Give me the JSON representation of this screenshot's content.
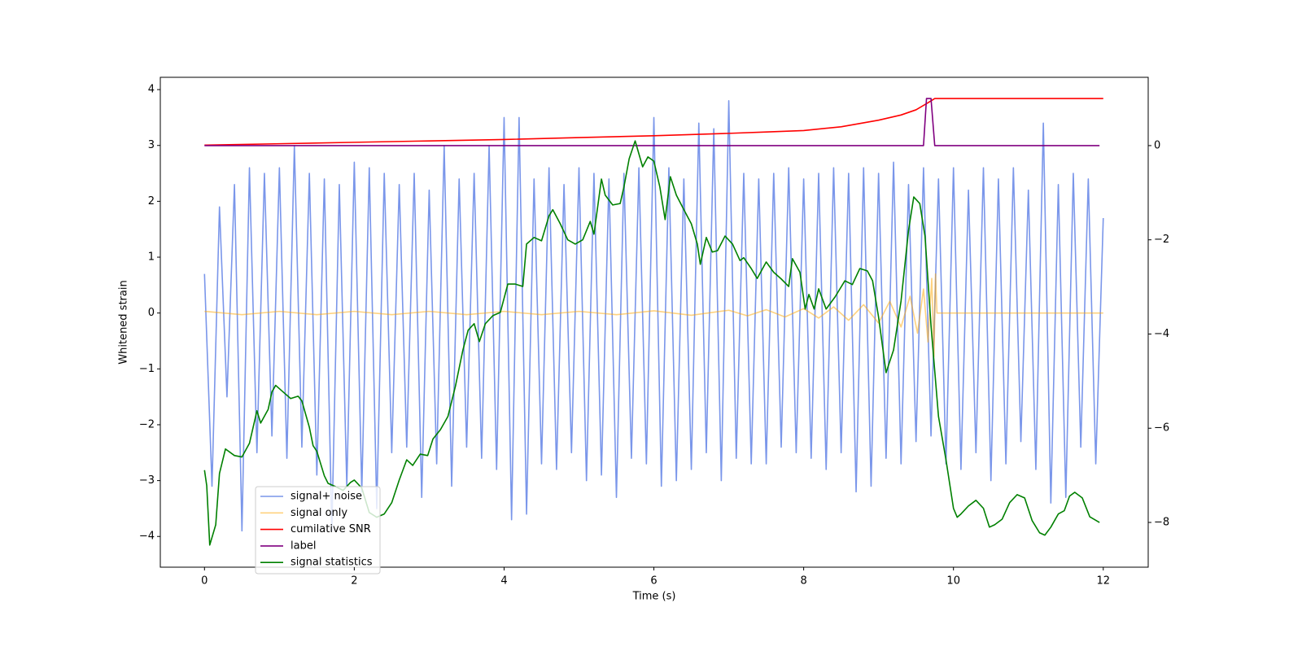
{
  "chart_data": {
    "type": "line",
    "xlabel": "Time (s)",
    "ylabel": "Whitened strain",
    "xlim": [
      -0.59,
      12.6
    ],
    "xticks": [
      0,
      2,
      4,
      6,
      8,
      10,
      12
    ],
    "ylim": [
      -4.55,
      4.22
    ],
    "yticks": [
      {
        "value": -4,
        "label": "−4"
      },
      {
        "value": -3,
        "label": "−3"
      },
      {
        "value": -2,
        "label": "−2"
      },
      {
        "value": -1,
        "label": "−1"
      },
      0,
      1,
      2,
      3,
      4
    ],
    "y2lim": [
      -8.95,
      1.45
    ],
    "y2ticks": [
      {
        "value": -8,
        "label": "−8"
      },
      {
        "value": -6,
        "label": "−6"
      },
      {
        "value": -4,
        "label": "−4"
      },
      {
        "value": -2,
        "label": "−2"
      },
      0
    ],
    "series": [
      {
        "name": "signal+ noise",
        "color": "#4169e1",
        "alpha": 0.7,
        "x": [
          0,
          0.1,
          0.2,
          0.3,
          0.4,
          0.5,
          0.6,
          0.7,
          0.8,
          0.9,
          1,
          1.1,
          1.2,
          1.3,
          1.4,
          1.5,
          1.6,
          1.7,
          1.8,
          1.9,
          2,
          2.1,
          2.2,
          2.3,
          2.4,
          2.5,
          2.6,
          2.7,
          2.8,
          2.9,
          3,
          3.1,
          3.2,
          3.3,
          3.4,
          3.5,
          3.6,
          3.7,
          3.8,
          3.9,
          4,
          4.1,
          4.2,
          4.3,
          4.4,
          4.5,
          4.6,
          4.7,
          4.8,
          4.9,
          5,
          5.1,
          5.2,
          5.3,
          5.4,
          5.5,
          5.6,
          5.7,
          5.8,
          5.9,
          6,
          6.1,
          6.2,
          6.3,
          6.4,
          6.5,
          6.6,
          6.7,
          6.8,
          6.9,
          7,
          7.1,
          7.2,
          7.3,
          7.4,
          7.5,
          7.6,
          7.7,
          7.8,
          7.9,
          8,
          8.1,
          8.2,
          8.3,
          8.4,
          8.5,
          8.6,
          8.7,
          8.8,
          8.9,
          9,
          9.1,
          9.2,
          9.3,
          9.4,
          9.5,
          9.6,
          9.7,
          9.8,
          9.9,
          10,
          10.1,
          10.2,
          10.3,
          10.4,
          10.5,
          10.6,
          10.7,
          10.8,
          10.9,
          11,
          11.1,
          11.2,
          11.3,
          11.4,
          11.5,
          11.6,
          11.7,
          11.8,
          11.9,
          12
        ],
        "values": [
          0.7,
          -3.1,
          1.9,
          -1.5,
          2.3,
          -3.9,
          2.6,
          -2.5,
          2.5,
          -2.2,
          2.6,
          -2.6,
          3.0,
          -2.4,
          2.5,
          -2.9,
          2.4,
          -3.9,
          2.3,
          -3.1,
          2.7,
          -3.2,
          2.6,
          -3.5,
          2.5,
          -2.5,
          2.3,
          -2.4,
          2.5,
          -3.3,
          2.2,
          -2.7,
          3.0,
          -3.1,
          2.4,
          -2.4,
          2.5,
          -2.6,
          3.0,
          -2.8,
          3.5,
          -3.7,
          3.5,
          -3.6,
          2.4,
          -2.7,
          2.6,
          -2.8,
          2.3,
          -2.5,
          2.6,
          -3.0,
          2.5,
          -2.9,
          2.4,
          -3.3,
          2.5,
          -2.6,
          2.6,
          -2.7,
          3.5,
          -3.1,
          2.6,
          -3.0,
          2.4,
          -2.8,
          3.4,
          -2.5,
          3.3,
          -3.0,
          3.8,
          -2.6,
          2.5,
          -2.7,
          2.4,
          -2.7,
          2.5,
          -2.4,
          2.6,
          -2.5,
          2.4,
          -2.6,
          2.5,
          -2.8,
          2.6,
          -2.5,
          2.5,
          -3.2,
          2.6,
          -3.1,
          2.5,
          -2.6,
          2.7,
          -2.7,
          2.3,
          -2.3,
          2.6,
          -2.2,
          2.4,
          -2.7,
          2.6,
          -2.8,
          2.2,
          -2.5,
          2.6,
          -3.0,
          2.4,
          -2.7,
          2.6,
          -2.3,
          2.2,
          -2.8,
          3.4,
          -3.4,
          2.3,
          -3.3,
          2.5,
          -2.4,
          2.4,
          -2.7,
          1.7
        ]
      },
      {
        "name": "signal only",
        "color": "#ffa500",
        "alpha": 0.5,
        "x": [
          0,
          0.5,
          1,
          1.5,
          2,
          2.5,
          3,
          3.5,
          4,
          4.5,
          5,
          5.5,
          6,
          6.5,
          7,
          7.25,
          7.5,
          7.75,
          8,
          8.2,
          8.4,
          8.6,
          8.8,
          9,
          9.15,
          9.3,
          9.42,
          9.52,
          9.6,
          9.66,
          9.71,
          9.74,
          9.76,
          9.78,
          12
        ],
        "values": [
          0.03,
          -0.03,
          0.03,
          -0.03,
          0.03,
          -0.03,
          0.03,
          -0.03,
          0.03,
          -0.03,
          0.03,
          -0.03,
          0.04,
          -0.04,
          0.05,
          -0.05,
          0.06,
          -0.07,
          0.08,
          -0.09,
          0.11,
          -0.13,
          0.15,
          -0.18,
          0.21,
          -0.25,
          0.3,
          -0.36,
          0.43,
          -0.52,
          0.62,
          -0.78,
          0.7,
          0,
          0
        ]
      },
      {
        "name": "cumilative SNR",
        "color": "#ff0000",
        "axis": "y2",
        "x": [
          0,
          1,
          2,
          3,
          4,
          5,
          6,
          7,
          7.5,
          8,
          8.5,
          9,
          9.3,
          9.5,
          9.65,
          9.75,
          12
        ],
        "values": [
          0.01,
          0.04,
          0.07,
          0.1,
          0.13,
          0.17,
          0.21,
          0.26,
          0.29,
          0.32,
          0.4,
          0.54,
          0.65,
          0.76,
          0.9,
          1.0,
          1.0
        ]
      },
      {
        "name": "label",
        "color": "#800080",
        "axis": "y2",
        "x": [
          0,
          9.6,
          9.64,
          9.7,
          9.75,
          11.95
        ],
        "values": [
          0,
          0,
          1,
          1,
          0,
          0
        ]
      },
      {
        "name": "signal statistics",
        "color": "#008000",
        "axis": "y2",
        "x": [
          0,
          0.03,
          0.07,
          0.15,
          0.2,
          0.28,
          0.4,
          0.5,
          0.6,
          0.7,
          0.75,
          0.85,
          0.9,
          0.95,
          1.05,
          1.15,
          1.25,
          1.3,
          1.4,
          1.45,
          1.5,
          1.6,
          1.65,
          1.75,
          1.85,
          1.95,
          2,
          2.1,
          2.2,
          2.3,
          2.4,
          2.5,
          2.6,
          2.7,
          2.78,
          2.88,
          2.98,
          3.05,
          3.15,
          3.25,
          3.35,
          3.45,
          3.52,
          3.6,
          3.67,
          3.75,
          3.85,
          3.95,
          4.05,
          4.15,
          4.25,
          4.3,
          4.4,
          4.5,
          4.6,
          4.65,
          4.75,
          4.85,
          4.95,
          5.05,
          5.15,
          5.2,
          5.3,
          5.35,
          5.45,
          5.55,
          5.6,
          5.67,
          5.75,
          5.85,
          5.92,
          6,
          6.08,
          6.15,
          6.22,
          6.3,
          6.4,
          6.5,
          6.58,
          6.62,
          6.7,
          6.78,
          6.85,
          6.95,
          7.05,
          7.15,
          7.2,
          7.3,
          7.38,
          7.5,
          7.6,
          7.7,
          7.8,
          7.85,
          7.95,
          8.02,
          8.07,
          8.14,
          8.2,
          8.3,
          8.42,
          8.55,
          8.65,
          8.75,
          8.85,
          8.92,
          9,
          9.1,
          9.2,
          9.3,
          9.4,
          9.47,
          9.55,
          9.62,
          9.7,
          9.8,
          9.9,
          10,
          10.05,
          10.1,
          10.2,
          10.3,
          10.4,
          10.48,
          10.55,
          10.65,
          10.75,
          10.85,
          10.95,
          11.05,
          11.15,
          11.22,
          11.3,
          11.4,
          11.48,
          11.55,
          11.62,
          11.72,
          11.82,
          11.95
        ],
        "values": [
          -6.89,
          -7.22,
          -8.48,
          -8.05,
          -6.96,
          -6.44,
          -6.58,
          -6.61,
          -6.32,
          -5.63,
          -5.89,
          -5.6,
          -5.23,
          -5.09,
          -5.23,
          -5.37,
          -5.32,
          -5.42,
          -5.98,
          -6.37,
          -6.49,
          -7.01,
          -7.17,
          -7.24,
          -7.32,
          -7.15,
          -7.1,
          -7.27,
          -7.79,
          -7.89,
          -7.82,
          -7.58,
          -7.1,
          -6.67,
          -6.79,
          -6.55,
          -6.58,
          -6.23,
          -6.03,
          -5.75,
          -5.11,
          -4.34,
          -3.92,
          -3.78,
          -4.16,
          -3.78,
          -3.61,
          -3.54,
          -2.94,
          -2.94,
          -2.99,
          -2.09,
          -1.95,
          -2.02,
          -1.49,
          -1.36,
          -1.66,
          -2.0,
          -2.09,
          -2.0,
          -1.61,
          -1.88,
          -0.71,
          -1.05,
          -1.26,
          -1.23,
          -0.88,
          -0.28,
          0.1,
          -0.45,
          -0.24,
          -0.33,
          -0.88,
          -1.57,
          -0.66,
          -1.05,
          -1.36,
          -1.66,
          -2.09,
          -2.52,
          -1.95,
          -2.26,
          -2.23,
          -1.92,
          -2.09,
          -2.44,
          -2.38,
          -2.61,
          -2.82,
          -2.47,
          -2.69,
          -2.83,
          -2.99,
          -2.4,
          -2.69,
          -3.47,
          -3.16,
          -3.47,
          -3.04,
          -3.47,
          -3.21,
          -2.87,
          -2.95,
          -2.61,
          -2.66,
          -2.87,
          -3.64,
          -4.82,
          -4.34,
          -3.3,
          -1.8,
          -1.09,
          -1.23,
          -1.92,
          -3.82,
          -5.75,
          -6.67,
          -7.7,
          -7.89,
          -7.82,
          -7.65,
          -7.53,
          -7.7,
          -8.1,
          -8.05,
          -7.93,
          -7.58,
          -7.41,
          -7.48,
          -7.96,
          -8.22,
          -8.27,
          -8.1,
          -7.82,
          -7.75,
          -7.44,
          -7.36,
          -7.48,
          -7.88,
          -8.0
        ]
      }
    ]
  }
}
